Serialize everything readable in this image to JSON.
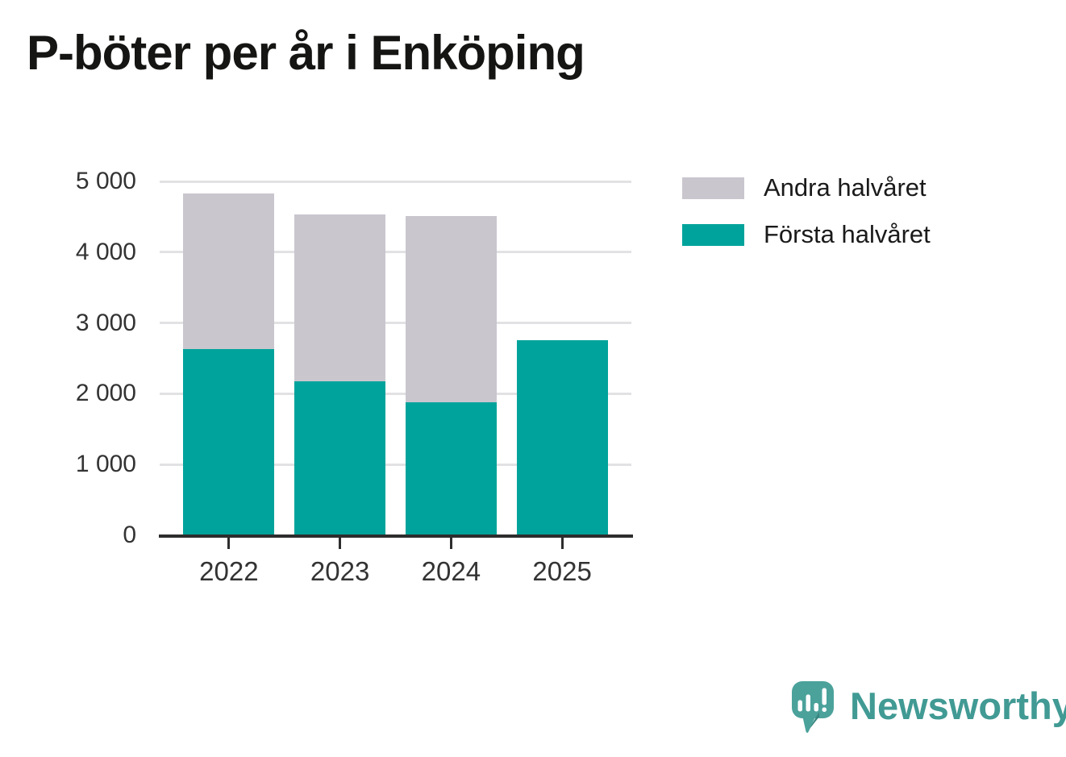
{
  "title": "P-böter per år i Enköping",
  "chart_data": {
    "type": "bar",
    "stacked": true,
    "title": "P-böter per år i Enköping",
    "categories": [
      "2022",
      "2023",
      "2024",
      "2025"
    ],
    "series": [
      {
        "name": "Första halvåret",
        "color": "#00a39b",
        "values": [
          2630,
          2170,
          1880,
          2760
        ]
      },
      {
        "name": "Andra halvåret",
        "color": "#c9c6ce",
        "values": [
          2200,
          2360,
          2630,
          0
        ]
      }
    ],
    "stack_totals": [
      4830,
      4530,
      4510,
      2760
    ],
    "xlabel": "",
    "ylabel": "",
    "ylim": [
      0,
      5000
    ],
    "yticks": [
      {
        "value": 0,
        "label": "0"
      },
      {
        "value": 1000,
        "label": "1 000"
      },
      {
        "value": 2000,
        "label": "2 000"
      },
      {
        "value": 3000,
        "label": "3 000"
      },
      {
        "value": 4000,
        "label": "4 000"
      },
      {
        "value": 5000,
        "label": "5 000"
      }
    ],
    "grid": "horizontal",
    "legend_position": "top-right",
    "legend": [
      {
        "label": "Andra halvåret",
        "color": "#c9c6ce"
      },
      {
        "label": "Första halvåret",
        "color": "#00a39b"
      }
    ]
  },
  "branding": {
    "name": "Newsworthy",
    "text_color": "#419a94",
    "icon_color": "#4ba29b",
    "icon_shadow_color": "#38857f"
  },
  "colors": {
    "background": "#ffffff",
    "axis": "#2d2d2d",
    "grid": "#e2e2e4",
    "tick_text": "#333333",
    "title_text": "#151513"
  }
}
